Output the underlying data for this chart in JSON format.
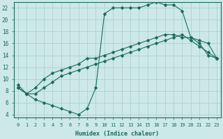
{
  "xlabel": "Humidex (Indice chaleur)",
  "background_color": "#cce8e8",
  "line_color": "#1a6b5a",
  "grid_color": "#aacccc",
  "xlim": [
    -0.5,
    23.5
  ],
  "ylim": [
    3.5,
    23
  ],
  "yticks": [
    4,
    6,
    8,
    10,
    12,
    14,
    16,
    18,
    20,
    22
  ],
  "xticks": [
    0,
    1,
    2,
    3,
    4,
    5,
    6,
    7,
    8,
    9,
    10,
    11,
    12,
    13,
    14,
    15,
    16,
    17,
    18,
    19,
    20,
    21,
    22,
    23
  ],
  "line1_x": [
    0,
    1,
    2,
    3,
    4,
    5,
    6,
    7,
    8,
    9,
    10,
    11,
    12,
    13,
    14,
    15,
    16,
    17,
    18,
    19,
    20,
    21,
    22,
    23
  ],
  "line1_y": [
    9,
    7.5,
    6.5,
    6.0,
    5.5,
    5.0,
    4.5,
    4.0,
    5.0,
    8.5,
    21.0,
    22.0,
    22.0,
    22.0,
    22.0,
    22.5,
    23.0,
    22.5,
    22.5,
    21.5,
    17.0,
    16.0,
    14.0,
    13.5
  ],
  "line2_x": [
    0,
    1,
    2,
    3,
    4,
    5,
    6,
    7,
    8,
    9,
    10,
    11,
    12,
    13,
    14,
    15,
    16,
    17,
    18,
    19,
    20,
    21,
    22,
    23
  ],
  "line2_y": [
    8.5,
    7.5,
    8.5,
    10.0,
    11.0,
    11.5,
    12.0,
    12.5,
    13.5,
    13.5,
    14.0,
    14.5,
    15.0,
    15.5,
    16.0,
    16.5,
    17.0,
    17.5,
    17.5,
    17.0,
    17.0,
    16.5,
    16.0,
    13.5
  ],
  "line3_x": [
    0,
    1,
    2,
    3,
    4,
    5,
    6,
    7,
    8,
    9,
    10,
    11,
    12,
    13,
    14,
    15,
    16,
    17,
    18,
    19,
    20,
    21,
    22,
    23
  ],
  "line3_y": [
    8.5,
    7.5,
    7.5,
    8.5,
    9.5,
    10.5,
    11.0,
    11.5,
    12.0,
    12.5,
    13.0,
    13.5,
    14.0,
    14.5,
    15.0,
    15.5,
    16.0,
    16.5,
    17.0,
    17.5,
    16.5,
    15.5,
    14.5,
    13.5
  ]
}
